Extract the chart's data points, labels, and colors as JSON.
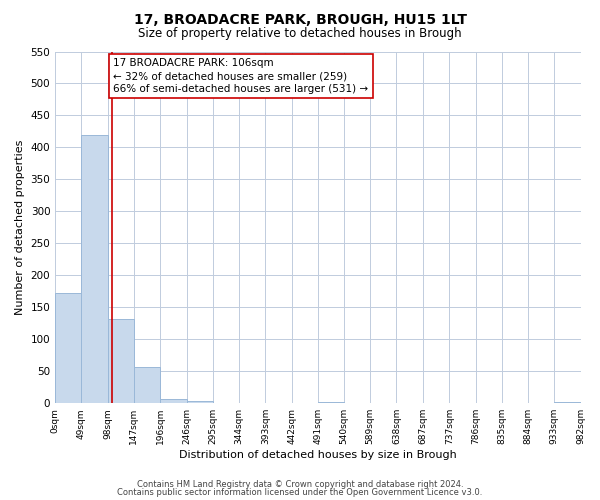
{
  "title": "17, BROADACRE PARK, BROUGH, HU15 1LT",
  "subtitle": "Size of property relative to detached houses in Brough",
  "xlabel": "Distribution of detached houses by size in Brough",
  "ylabel": "Number of detached properties",
  "bin_edges": [
    0,
    49,
    98,
    147,
    196,
    246,
    295,
    344,
    393,
    442,
    491,
    540,
    589,
    638,
    687,
    737,
    786,
    835,
    884,
    933,
    982
  ],
  "bin_labels": [
    "0sqm",
    "49sqm",
    "98sqm",
    "147sqm",
    "196sqm",
    "246sqm",
    "295sqm",
    "344sqm",
    "393sqm",
    "442sqm",
    "491sqm",
    "540sqm",
    "589sqm",
    "638sqm",
    "687sqm",
    "737sqm",
    "786sqm",
    "835sqm",
    "884sqm",
    "933sqm",
    "982sqm"
  ],
  "bar_heights": [
    173,
    420,
    131,
    57,
    7,
    4,
    0,
    0,
    0,
    0,
    2,
    0,
    0,
    0,
    0,
    0,
    0,
    0,
    0,
    2
  ],
  "bar_color": "#c8d9ec",
  "bar_edge_color": "#9ab8d8",
  "property_line_x": 106,
  "property_line_color": "#cc0000",
  "annotation_text": "17 BROADACRE PARK: 106sqm\n← 32% of detached houses are smaller (259)\n66% of semi-detached houses are larger (531) →",
  "annotation_box_color": "#ffffff",
  "annotation_box_edge_color": "#cc0000",
  "ylim": [
    0,
    550
  ],
  "yticks": [
    0,
    50,
    100,
    150,
    200,
    250,
    300,
    350,
    400,
    450,
    500,
    550
  ],
  "footer_line1": "Contains HM Land Registry data © Crown copyright and database right 2024.",
  "footer_line2": "Contains public sector information licensed under the Open Government Licence v3.0.",
  "bg_color": "#ffffff",
  "grid_color": "#c0ccdd",
  "title_fontsize": 10,
  "subtitle_fontsize": 8.5,
  "xlabel_fontsize": 8,
  "ylabel_fontsize": 8,
  "annotation_fontsize": 7.5,
  "tick_fontsize": 6.5,
  "ytick_fontsize": 7.5,
  "footer_fontsize": 6
}
